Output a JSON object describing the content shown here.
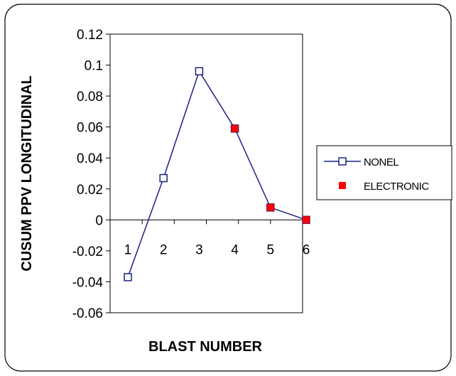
{
  "chart_data": {
    "type": "line",
    "categories": [
      "1",
      "2",
      "3",
      "4",
      "5",
      "6"
    ],
    "x": [
      1,
      2,
      3,
      4,
      5,
      6
    ],
    "series": [
      {
        "name": "NONEL",
        "points": [
          [
            1,
            -0.037
          ],
          [
            2,
            0.027
          ],
          [
            3,
            0.096
          ],
          [
            4,
            0.059
          ],
          [
            5,
            0.008
          ],
          [
            6,
            0.0
          ]
        ],
        "marker": "hollow-square",
        "line": true,
        "color": "#1a237e"
      },
      {
        "name": "ELECTRONIC",
        "points": [
          [
            4,
            0.059
          ],
          [
            5,
            0.008
          ],
          [
            6,
            0.0
          ]
        ],
        "marker": "filled-square",
        "line": false,
        "color": "#ff0000"
      }
    ],
    "xlabel": "BLAST NUMBER",
    "ylabel": "CUSUM PPV LONGITUDINAL",
    "ylim": [
      -0.06,
      0.12
    ],
    "yticks": [
      "0.12",
      "0.1",
      "0.08",
      "0.06",
      "0.04",
      "0.02",
      "0",
      "-0.02",
      "-0.04",
      "-0.06"
    ],
    "ytick_values": [
      0.12,
      0.1,
      0.08,
      0.06,
      0.04,
      0.02,
      0,
      -0.02,
      -0.04,
      -0.06
    ],
    "grid": false,
    "legend": "right"
  }
}
